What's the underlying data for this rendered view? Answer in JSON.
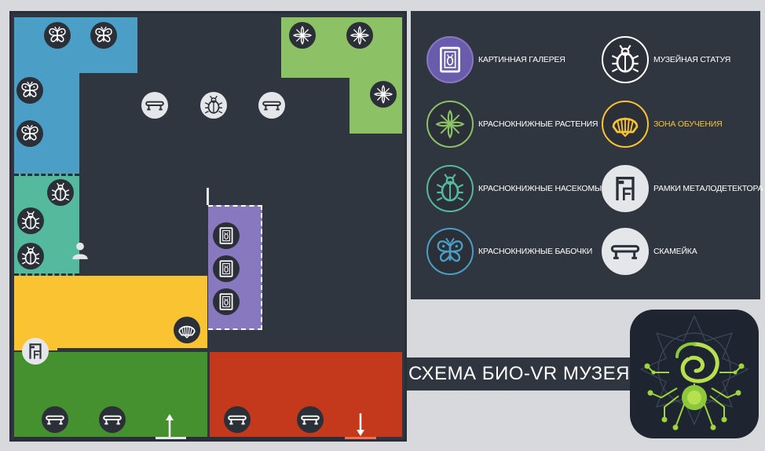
{
  "title": "СХЕМА БИО-VR МУЗЕЯ",
  "colors": {
    "background": "#d7d9dd",
    "floor": "#2f3640",
    "butterfly_zone": "#4b9fc6",
    "insect_zone": "#54b99d",
    "plant_zone": "#8cc165",
    "gallery_zone": "#8878c0",
    "learning_zone": "#f9c332",
    "entrance_zone": "#45912f",
    "exit_zone": "#c4391b",
    "highlight_label": "#f9c332"
  },
  "legend": [
    {
      "icon": "picture-gallery-icon",
      "label": "КАРТИННАЯ ГАЛЕРЕЯ",
      "border": "#8878c0",
      "fill": "#6a5cac",
      "stroke": "#ffffff"
    },
    {
      "icon": "museum-statue-icon",
      "label": "МУЗЕЙНАЯ СТАТУЯ",
      "border": "#ffffff",
      "fill": "#2b3038",
      "stroke": "#ffffff"
    },
    {
      "icon": "plant-icon",
      "label": "КРАСНОКНИЖНЫЕ РАСТЕНИЯ",
      "border": "#8cc165",
      "fill": "#2b3038",
      "stroke": "#8cc165"
    },
    {
      "icon": "shell-icon",
      "label": "ЗОНА ОБУЧЕНИЯ",
      "border": "#f9c332",
      "fill": "#2b3038",
      "stroke": "#f9c332",
      "highlight": true
    },
    {
      "icon": "beetle-icon",
      "label": "КРАСНОКНИЖНЫЕ НАСЕКОМЫЕ",
      "border": "#54b99d",
      "fill": "#2b3038",
      "stroke": "#54b99d"
    },
    {
      "icon": "metal-detector-icon",
      "label": "РАМКИ МЕТАЛОДЕТЕКТОРА",
      "border": "#e4e6ea",
      "fill": "#e4e6ea",
      "stroke": "#2b3038"
    },
    {
      "icon": "butterfly-icon",
      "label": "КРАСНОКНИЖНЫЕ БАБОЧКИ",
      "border": "#4b9fc6",
      "fill": "#2b3038",
      "stroke": "#4b9fc6"
    },
    {
      "icon": "bench-icon",
      "label": "СКАМЕЙКА",
      "border": "#e4e6ea",
      "fill": "#e4e6ea",
      "stroke": "#2b3038"
    }
  ]
}
